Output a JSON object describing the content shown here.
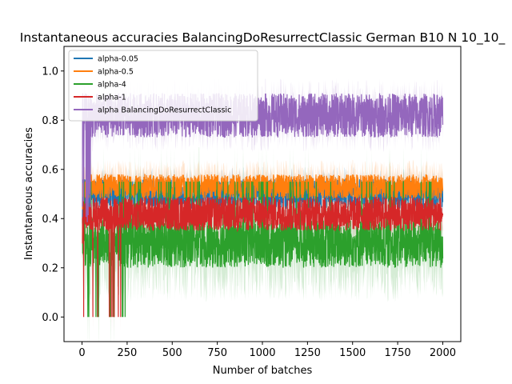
{
  "chart_data": {
    "type": "line",
    "title": "Instantaneous accuracies BalancingDoResurrectClassic German B10 N 10_10_",
    "xlabel": "Number of batches",
    "ylabel": "Instantaneous accuracies",
    "xlim": [
      -100,
      2100
    ],
    "ylim": [
      -0.1,
      1.1
    ],
    "x_ticks": [
      0,
      250,
      500,
      750,
      1000,
      1250,
      1500,
      1750,
      2000
    ],
    "y_ticks": [
      0.0,
      0.2,
      0.4,
      0.6,
      0.8,
      1.0
    ],
    "x_tick_labels": [
      "0",
      "250",
      "500",
      "750",
      "1000",
      "1250",
      "1500",
      "1750",
      "2000"
    ],
    "y_tick_labels": [
      "0.0",
      "0.2",
      "0.4",
      "0.6",
      "0.8",
      "1.0"
    ],
    "n_batches": 2000,
    "legend_position": "top-left",
    "grid": false,
    "series": [
      {
        "name": "alpha-0.05",
        "color": "#1f77b4",
        "mean": 0.5,
        "spread": 0.06,
        "lo": 0.38,
        "hi": 0.62,
        "band": 0.05,
        "start": 0.3
      },
      {
        "name": "alpha-0.5",
        "color": "#ff7f0e",
        "mean": 0.53,
        "spread": 0.05,
        "lo": 0.44,
        "hi": 0.62,
        "band": 0.06,
        "start": 0.4
      },
      {
        "name": "alpha-4",
        "color": "#2ca02c",
        "mean": 0.3,
        "spread": 0.1,
        "lo": 0.0,
        "hi": 0.6,
        "band": 0.14,
        "start": 0.4
      },
      {
        "name": "alpha-1",
        "color": "#d62728",
        "mean": 0.42,
        "spread": 0.07,
        "lo": 0.0,
        "hi": 0.55,
        "band": 0.06,
        "start": 0.3
      },
      {
        "name": "alpha BalancingDoResurrectClassic",
        "color": "#9467bd",
        "mean": 0.82,
        "spread": 0.09,
        "lo": 0.35,
        "hi": 0.98,
        "band": 0.06,
        "start": 0.45
      }
    ]
  }
}
